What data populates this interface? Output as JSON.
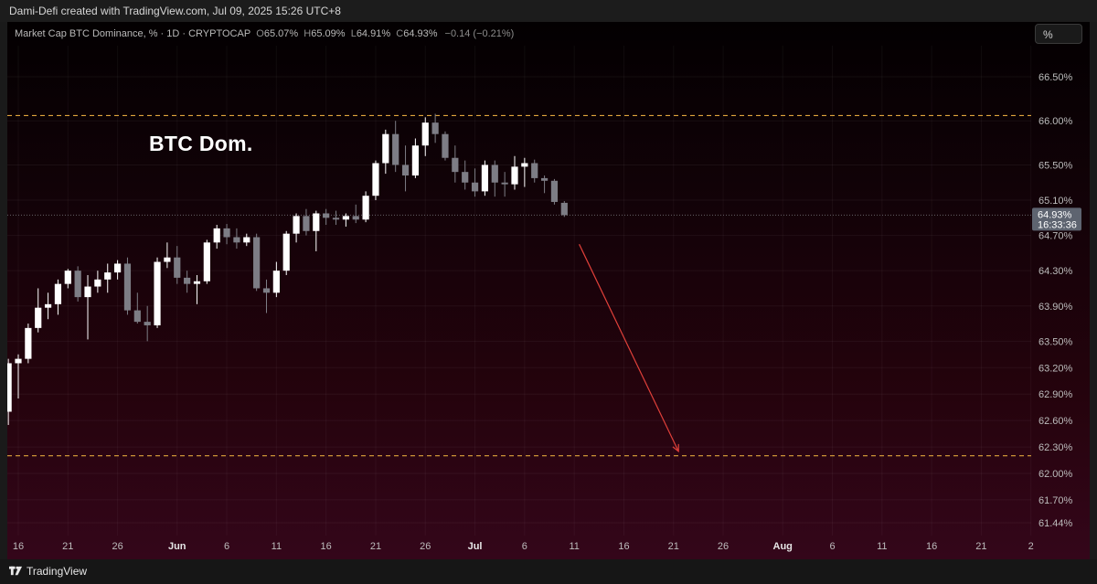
{
  "attribution": "Dami-Defi created with TradingView.com, Jul 09, 2025 15:26 UTC+8",
  "unit_button": "%",
  "brand": "TradingView",
  "legend": {
    "symbol": "Market Cap BTC Dominance, % · 1D · CRYPTOCAP",
    "open_label": "O",
    "open": "65.07%",
    "high_label": "H",
    "high": "65.09%",
    "low_label": "L",
    "low": "64.91%",
    "close_label": "C",
    "close": "64.93%",
    "change": "−0.14 (−0.21%)"
  },
  "colors": {
    "up_candle": "#ffffff",
    "down_candle": "#7d7d85",
    "dashed_line": "#e0a53c",
    "arrow": "#e0403a",
    "last_price_tag": "#5e6470"
  },
  "chart_data": {
    "type": "candlestick",
    "title": "BTC Dom.",
    "ylabel": "%",
    "ylim": [
      61.3,
      66.9
    ],
    "grid": true,
    "y_ticks": [
      "66.50%",
      "66.00%",
      "65.50%",
      "65.10%",
      "64.70%",
      "64.30%",
      "63.90%",
      "63.50%",
      "63.20%",
      "62.90%",
      "62.60%",
      "62.30%",
      "62.00%",
      "61.70%",
      "61.44%"
    ],
    "y_tick_values": [
      66.5,
      66.0,
      65.5,
      65.1,
      64.7,
      64.3,
      63.9,
      63.5,
      63.2,
      62.9,
      62.6,
      62.3,
      62.0,
      61.7,
      61.44
    ],
    "x_ticks": [
      {
        "label": "16",
        "day": 0,
        "bold": false
      },
      {
        "label": "21",
        "day": 5,
        "bold": false
      },
      {
        "label": "26",
        "day": 10,
        "bold": false
      },
      {
        "label": "Jun",
        "day": 16,
        "bold": true
      },
      {
        "label": "6",
        "day": 21,
        "bold": false
      },
      {
        "label": "11",
        "day": 26,
        "bold": false
      },
      {
        "label": "16",
        "day": 31,
        "bold": false
      },
      {
        "label": "21",
        "day": 36,
        "bold": false
      },
      {
        "label": "26",
        "day": 41,
        "bold": false
      },
      {
        "label": "Jul",
        "day": 46,
        "bold": true
      },
      {
        "label": "6",
        "day": 51,
        "bold": false
      },
      {
        "label": "11",
        "day": 56,
        "bold": false
      },
      {
        "label": "16",
        "day": 61,
        "bold": false
      },
      {
        "label": "21",
        "day": 66,
        "bold": false
      },
      {
        "label": "26",
        "day": 71,
        "bold": false
      },
      {
        "label": "Aug",
        "day": 77,
        "bold": true
      },
      {
        "label": "6",
        "day": 82,
        "bold": false
      },
      {
        "label": "11",
        "day": 87,
        "bold": false
      },
      {
        "label": "16",
        "day": 92,
        "bold": false
      },
      {
        "label": "21",
        "day": 97,
        "bold": false
      },
      {
        "label": "2",
        "day": 102,
        "bold": false
      }
    ],
    "candles": [
      {
        "day": -1,
        "o": 62.7,
        "h": 63.3,
        "l": 62.55,
        "c": 63.25
      },
      {
        "day": 0,
        "o": 63.25,
        "h": 63.35,
        "l": 62.85,
        "c": 63.3
      },
      {
        "day": 1,
        "o": 63.3,
        "h": 63.7,
        "l": 63.25,
        "c": 63.65
      },
      {
        "day": 2,
        "o": 63.65,
        "h": 64.1,
        "l": 63.6,
        "c": 63.88
      },
      {
        "day": 3,
        "o": 63.88,
        "h": 64.05,
        "l": 63.75,
        "c": 63.92
      },
      {
        "day": 4,
        "o": 63.92,
        "h": 64.2,
        "l": 63.8,
        "c": 64.15
      },
      {
        "day": 5,
        "o": 64.15,
        "h": 64.32,
        "l": 64.1,
        "c": 64.3
      },
      {
        "day": 6,
        "o": 64.3,
        "h": 64.35,
        "l": 63.95,
        "c": 64.0
      },
      {
        "day": 7,
        "o": 64.0,
        "h": 64.25,
        "l": 63.52,
        "c": 64.12
      },
      {
        "day": 8,
        "o": 64.12,
        "h": 64.3,
        "l": 64.05,
        "c": 64.2
      },
      {
        "day": 9,
        "o": 64.2,
        "h": 64.38,
        "l": 64.05,
        "c": 64.28
      },
      {
        "day": 10,
        "o": 64.28,
        "h": 64.42,
        "l": 64.2,
        "c": 64.38
      },
      {
        "day": 11,
        "o": 64.38,
        "h": 64.45,
        "l": 63.8,
        "c": 63.85
      },
      {
        "day": 12,
        "o": 63.85,
        "h": 64.05,
        "l": 63.7,
        "c": 63.72
      },
      {
        "day": 13,
        "o": 63.72,
        "h": 63.9,
        "l": 63.5,
        "c": 63.68
      },
      {
        "day": 14,
        "o": 63.68,
        "h": 64.45,
        "l": 63.65,
        "c": 64.4
      },
      {
        "day": 15,
        "o": 64.4,
        "h": 64.62,
        "l": 64.33,
        "c": 64.45
      },
      {
        "day": 16,
        "o": 64.45,
        "h": 64.58,
        "l": 64.15,
        "c": 64.22
      },
      {
        "day": 17,
        "o": 64.22,
        "h": 64.3,
        "l": 64.05,
        "c": 64.15
      },
      {
        "day": 18,
        "o": 64.15,
        "h": 64.25,
        "l": 63.92,
        "c": 64.18
      },
      {
        "day": 19,
        "o": 64.18,
        "h": 64.65,
        "l": 64.15,
        "c": 64.62
      },
      {
        "day": 20,
        "o": 64.62,
        "h": 64.82,
        "l": 64.55,
        "c": 64.78
      },
      {
        "day": 21,
        "o": 64.78,
        "h": 64.83,
        "l": 64.6,
        "c": 64.68
      },
      {
        "day": 22,
        "o": 64.68,
        "h": 64.78,
        "l": 64.55,
        "c": 64.62
      },
      {
        "day": 23,
        "o": 64.62,
        "h": 64.72,
        "l": 64.58,
        "c": 64.68
      },
      {
        "day": 24,
        "o": 64.68,
        "h": 64.72,
        "l": 64.07,
        "c": 64.1
      },
      {
        "day": 25,
        "o": 64.1,
        "h": 64.2,
        "l": 63.82,
        "c": 64.05
      },
      {
        "day": 26,
        "o": 64.05,
        "h": 64.4,
        "l": 64.0,
        "c": 64.3
      },
      {
        "day": 27,
        "o": 64.3,
        "h": 64.75,
        "l": 64.25,
        "c": 64.72
      },
      {
        "day": 28,
        "o": 64.72,
        "h": 64.95,
        "l": 64.62,
        "c": 64.92
      },
      {
        "day": 29,
        "o": 64.92,
        "h": 65.0,
        "l": 64.7,
        "c": 64.75
      },
      {
        "day": 30,
        "o": 64.75,
        "h": 64.98,
        "l": 64.52,
        "c": 64.95
      },
      {
        "day": 31,
        "o": 64.95,
        "h": 65.0,
        "l": 64.82,
        "c": 64.9
      },
      {
        "day": 32,
        "o": 64.9,
        "h": 64.98,
        "l": 64.82,
        "c": 64.88
      },
      {
        "day": 33,
        "o": 64.88,
        "h": 64.95,
        "l": 64.8,
        "c": 64.92
      },
      {
        "day": 34,
        "o": 64.92,
        "h": 65.05,
        "l": 64.84,
        "c": 64.88
      },
      {
        "day": 35,
        "o": 64.88,
        "h": 65.2,
        "l": 64.85,
        "c": 65.15
      },
      {
        "day": 36,
        "o": 65.15,
        "h": 65.55,
        "l": 65.1,
        "c": 65.52
      },
      {
        "day": 37,
        "o": 65.52,
        "h": 65.9,
        "l": 65.4,
        "c": 65.85
      },
      {
        "day": 38,
        "o": 65.85,
        "h": 66.0,
        "l": 65.42,
        "c": 65.5
      },
      {
        "day": 39,
        "o": 65.5,
        "h": 65.72,
        "l": 65.2,
        "c": 65.38
      },
      {
        "day": 40,
        "o": 65.38,
        "h": 65.8,
        "l": 65.35,
        "c": 65.72
      },
      {
        "day": 41,
        "o": 65.72,
        "h": 66.04,
        "l": 65.6,
        "c": 65.98
      },
      {
        "day": 42,
        "o": 65.98,
        "h": 66.08,
        "l": 65.75,
        "c": 65.85
      },
      {
        "day": 43,
        "o": 65.85,
        "h": 65.88,
        "l": 65.55,
        "c": 65.58
      },
      {
        "day": 44,
        "o": 65.58,
        "h": 65.72,
        "l": 65.3,
        "c": 65.42
      },
      {
        "day": 45,
        "o": 65.42,
        "h": 65.55,
        "l": 65.22,
        "c": 65.3
      },
      {
        "day": 46,
        "o": 65.3,
        "h": 65.46,
        "l": 65.14,
        "c": 65.2
      },
      {
        "day": 47,
        "o": 65.2,
        "h": 65.55,
        "l": 65.15,
        "c": 65.5
      },
      {
        "day": 48,
        "o": 65.5,
        "h": 65.55,
        "l": 65.14,
        "c": 65.3
      },
      {
        "day": 49,
        "o": 65.3,
        "h": 65.42,
        "l": 65.14,
        "c": 65.28
      },
      {
        "day": 50,
        "o": 65.28,
        "h": 65.6,
        "l": 65.22,
        "c": 65.48
      },
      {
        "day": 51,
        "o": 65.48,
        "h": 65.58,
        "l": 65.25,
        "c": 65.52
      },
      {
        "day": 52,
        "o": 65.52,
        "h": 65.56,
        "l": 65.3,
        "c": 65.35
      },
      {
        "day": 53,
        "o": 65.35,
        "h": 65.38,
        "l": 65.18,
        "c": 65.32
      },
      {
        "day": 54,
        "o": 65.32,
        "h": 65.34,
        "l": 65.05,
        "c": 65.08
      },
      {
        "day": 55,
        "o": 65.07,
        "h": 65.09,
        "l": 64.91,
        "c": 64.93
      }
    ],
    "last_price": {
      "value": 64.93,
      "label": "64.93%",
      "countdown": "16:33:36"
    },
    "horizontal_levels": [
      66.06,
      62.2
    ],
    "annotations": [
      {
        "kind": "arrow",
        "from": {
          "day": 56.5,
          "value": 64.6
        },
        "to": {
          "day": 66.5,
          "value": 62.25
        }
      }
    ]
  }
}
